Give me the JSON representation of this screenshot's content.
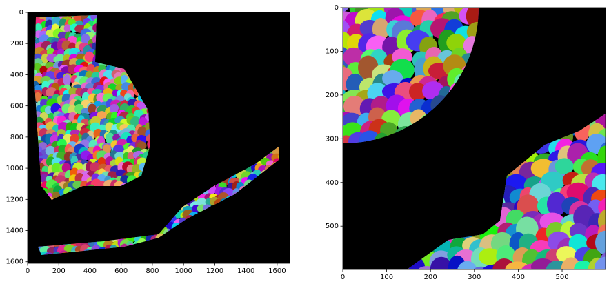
{
  "chart_data": [
    {
      "type": "image",
      "xlim": [
        0,
        1680
      ],
      "ylim": [
        1610,
        0
      ],
      "xticks": [
        0,
        200,
        400,
        600,
        800,
        1000,
        1200,
        1400,
        1600
      ],
      "yticks": [
        0,
        200,
        400,
        600,
        800,
        1000,
        1200,
        1400,
        1600
      ]
    },
    {
      "type": "image",
      "xlim": [
        0,
        599
      ],
      "ylim": [
        599,
        0
      ],
      "xticks": [
        0,
        100,
        200,
        300,
        400,
        500
      ],
      "yticks": [
        0,
        100,
        200,
        300,
        400,
        500
      ]
    }
  ]
}
